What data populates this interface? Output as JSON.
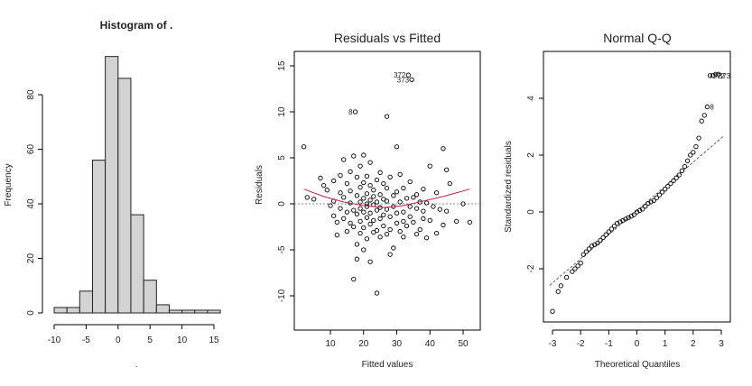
{
  "chart_data": [
    {
      "type": "bar",
      "title": "Histogram of .",
      "xlabel": ".",
      "ylabel": "Frequency",
      "xticks": [
        -10,
        -5,
        0,
        5,
        10,
        15
      ],
      "yticks": [
        0,
        20,
        40,
        60,
        80
      ],
      "xlim": [
        -10,
        15
      ],
      "ylim": [
        0,
        95
      ],
      "bin_edges": [
        -10,
        -8,
        -6,
        -4,
        -2,
        0,
        2,
        4,
        6,
        8,
        10,
        12,
        14,
        16
      ],
      "values": [
        2,
        2,
        8,
        56,
        94,
        86,
        36,
        12,
        3,
        1,
        1,
        1,
        1
      ],
      "fill": "#d3d3d3"
    },
    {
      "type": "scatter",
      "title": "Residuals vs Fitted",
      "xlabel": "Fitted values",
      "ylabel": "Residuals",
      "xticks": [
        10,
        20,
        30,
        40,
        50
      ],
      "yticks": [
        -10,
        -5,
        0,
        5,
        10,
        15
      ],
      "xlim": [
        0,
        54
      ],
      "ylim": [
        -12.5,
        17
      ],
      "points": [
        [
          2,
          6.2
        ],
        [
          3,
          0.7
        ],
        [
          5,
          0.5
        ],
        [
          7,
          2.8
        ],
        [
          8,
          2
        ],
        [
          9,
          1.5
        ],
        [
          10,
          -0.2
        ],
        [
          11,
          2.5
        ],
        [
          11,
          0.3
        ],
        [
          11,
          -1.3
        ],
        [
          12,
          -2
        ],
        [
          12,
          -3.4
        ],
        [
          13,
          1.2
        ],
        [
          13,
          -0.5
        ],
        [
          13,
          3.1
        ],
        [
          14,
          0.7
        ],
        [
          14,
          -1.6
        ],
        [
          14,
          4.8
        ],
        [
          15,
          2.2
        ],
        [
          15,
          -0.9
        ],
        [
          15,
          -3.0
        ],
        [
          16,
          1.4
        ],
        [
          16,
          -2.1
        ],
        [
          16,
          0.1
        ],
        [
          16,
          3.5
        ],
        [
          17,
          5.2
        ],
        [
          17,
          -0.7
        ],
        [
          17,
          -2.5
        ],
        [
          17,
          -8.2
        ],
        [
          18,
          2.9
        ],
        [
          18,
          0.9
        ],
        [
          18,
          -1.1
        ],
        [
          18,
          -4.4
        ],
        [
          18,
          -6.0
        ],
        [
          19,
          1.8
        ],
        [
          19,
          0.2
        ],
        [
          19,
          -1.9
        ],
        [
          19,
          -3.2
        ],
        [
          19,
          4.1
        ],
        [
          19,
          -0.5
        ],
        [
          20,
          2.3
        ],
        [
          20,
          0.6
        ],
        [
          20,
          -0.9
        ],
        [
          20,
          -2.6
        ],
        [
          20,
          -5.0
        ],
        [
          20,
          5.3
        ],
        [
          21,
          1.1
        ],
        [
          21,
          -0.3
        ],
        [
          21,
          -1.5
        ],
        [
          21,
          -3.8
        ],
        [
          21,
          3.0
        ],
        [
          21,
          0.0
        ],
        [
          22,
          2.0
        ],
        [
          22,
          0.4
        ],
        [
          22,
          -1.0
        ],
        [
          22,
          -2.2
        ],
        [
          22,
          -6.3
        ],
        [
          22,
          4.5
        ],
        [
          23,
          1.5
        ],
        [
          23,
          -0.1
        ],
        [
          23,
          -1.8
        ],
        [
          23,
          -3.1
        ],
        [
          23,
          0.8
        ],
        [
          24,
          2.6
        ],
        [
          24,
          0.2
        ],
        [
          24,
          -0.7
        ],
        [
          24,
          -2.9
        ],
        [
          24,
          -9.7
        ],
        [
          25,
          1.0
        ],
        [
          25,
          -0.4
        ],
        [
          25,
          -1.6
        ],
        [
          25,
          3.4
        ],
        [
          25,
          -3.6
        ],
        [
          26,
          0.5
        ],
        [
          26,
          -1.2
        ],
        [
          26,
          -2.4
        ],
        [
          26,
          2.2
        ],
        [
          27,
          1.7
        ],
        [
          27,
          -0.6
        ],
        [
          27,
          -3.3
        ],
        [
          27,
          9.5
        ],
        [
          27,
          0.3
        ],
        [
          28,
          -1.4
        ],
        [
          28,
          -2.8
        ],
        [
          28,
          -5.5
        ],
        [
          28,
          2.9
        ],
        [
          29,
          0.9
        ],
        [
          29,
          -0.3
        ],
        [
          29,
          -4.8
        ],
        [
          30,
          1.3
        ],
        [
          30,
          -1.0
        ],
        [
          30,
          -2.1
        ],
        [
          30,
          6.2
        ],
        [
          31,
          0.2
        ],
        [
          31,
          -3.0
        ],
        [
          31,
          3.2
        ],
        [
          32,
          1.7
        ],
        [
          32,
          -0.9
        ],
        [
          32,
          -1.9
        ],
        [
          32,
          -3.6
        ],
        [
          33,
          0.6
        ],
        [
          33,
          -2.4
        ],
        [
          34,
          2.4
        ],
        [
          34,
          -0.3
        ],
        [
          34,
          -1.4
        ],
        [
          35,
          0.7
        ],
        [
          35,
          -2.0
        ],
        [
          36,
          -0.5
        ],
        [
          36,
          1.0
        ],
        [
          36,
          -3.3
        ],
        [
          37,
          0.2
        ],
        [
          37,
          -2.8
        ],
        [
          38,
          -0.8
        ],
        [
          38,
          1.6
        ],
        [
          38,
          -1.6
        ],
        [
          39,
          0.1
        ],
        [
          39,
          -3.7
        ],
        [
          40,
          4.1
        ],
        [
          40,
          -1.8
        ],
        [
          41,
          -0.3
        ],
        [
          42,
          1.2
        ],
        [
          42,
          -3.2
        ],
        [
          43,
          -0.6
        ],
        [
          44,
          6.0
        ],
        [
          44,
          -2.3
        ],
        [
          45,
          3.7
        ],
        [
          45,
          -0.8
        ],
        [
          46,
          2.2
        ],
        [
          48,
          -1.9
        ],
        [
          50,
          0.0
        ],
        [
          52,
          -2.0
        ]
      ],
      "labeled_points": [
        {
          "label": "372",
          "x": 33.5,
          "y": 14.0
        },
        {
          "label": "373",
          "x": 34.5,
          "y": 13.5
        },
        {
          "label": "8",
          "x": 17.5,
          "y": 10.0
        }
      ],
      "smooth": [
        [
          2,
          1.6
        ],
        [
          8,
          0.8
        ],
        [
          14,
          0.2
        ],
        [
          20,
          -0.2
        ],
        [
          26,
          -0.4
        ],
        [
          32,
          -0.2
        ],
        [
          38,
          0.3
        ],
        [
          44,
          0.8
        ],
        [
          52,
          1.6
        ]
      ],
      "reference_y": 0,
      "smooth_color": "#c71c50"
    },
    {
      "type": "scatter",
      "title": "Normal Q-Q",
      "xlabel": "Theoretical Quantiles",
      "ylabel": "Standardized residuals",
      "xticks": [
        -3,
        -2,
        -1,
        0,
        1,
        2,
        3
      ],
      "yticks": [
        -2,
        0,
        2,
        4
      ],
      "xlim": [
        -3.1,
        3.1
      ],
      "ylim": [
        -3.7,
        5.6
      ],
      "points": [
        [
          -3.0,
          -3.5
        ],
        [
          -2.8,
          -2.8
        ],
        [
          -2.7,
          -2.6
        ],
        [
          -2.5,
          -2.3
        ],
        [
          -2.3,
          -2.1
        ],
        [
          -2.2,
          -2.0
        ],
        [
          -2.1,
          -1.9
        ],
        [
          -2.0,
          -1.8
        ],
        [
          -1.9,
          -1.5
        ],
        [
          -1.8,
          -1.4
        ],
        [
          -1.7,
          -1.3
        ],
        [
          -1.6,
          -1.2
        ],
        [
          -1.5,
          -1.15
        ],
        [
          -1.4,
          -1.1
        ],
        [
          -1.3,
          -1.0
        ],
        [
          -1.2,
          -0.9
        ],
        [
          -1.1,
          -0.8
        ],
        [
          -1.0,
          -0.7
        ],
        [
          -0.9,
          -0.6
        ],
        [
          -0.8,
          -0.5
        ],
        [
          -0.7,
          -0.4
        ],
        [
          -0.6,
          -0.35
        ],
        [
          -0.5,
          -0.3
        ],
        [
          -0.4,
          -0.25
        ],
        [
          -0.3,
          -0.2
        ],
        [
          -0.2,
          -0.15
        ],
        [
          -0.1,
          -0.1
        ],
        [
          0.0,
          0.0
        ],
        [
          0.1,
          0.05
        ],
        [
          0.2,
          0.1
        ],
        [
          0.3,
          0.2
        ],
        [
          0.4,
          0.3
        ],
        [
          0.5,
          0.35
        ],
        [
          0.6,
          0.4
        ],
        [
          0.7,
          0.5
        ],
        [
          0.8,
          0.6
        ],
        [
          0.9,
          0.7
        ],
        [
          1.0,
          0.8
        ],
        [
          1.1,
          0.9
        ],
        [
          1.2,
          1.0
        ],
        [
          1.3,
          1.1
        ],
        [
          1.4,
          1.2
        ],
        [
          1.5,
          1.3
        ],
        [
          1.6,
          1.45
        ],
        [
          1.7,
          1.6
        ],
        [
          1.8,
          1.8
        ],
        [
          1.9,
          2.0
        ],
        [
          2.0,
          2.1
        ],
        [
          2.1,
          2.3
        ],
        [
          2.2,
          2.6
        ],
        [
          2.3,
          3.2
        ],
        [
          2.4,
          3.4
        ],
        [
          2.5,
          3.7
        ],
        [
          2.6,
          4.8
        ],
        [
          2.7,
          4.8
        ],
        [
          2.8,
          4.85
        ],
        [
          2.9,
          4.85
        ]
      ],
      "labeled_points": [
        {
          "label": "8",
          "x": 2.5,
          "y": 3.7
        },
        {
          "label": "372",
          "x": 2.6,
          "y": 4.8
        },
        {
          "label": "373",
          "x": 2.8,
          "y": 4.8
        }
      ],
      "qq_line": {
        "slope": 0.85,
        "intercept": 0.05
      }
    }
  ]
}
